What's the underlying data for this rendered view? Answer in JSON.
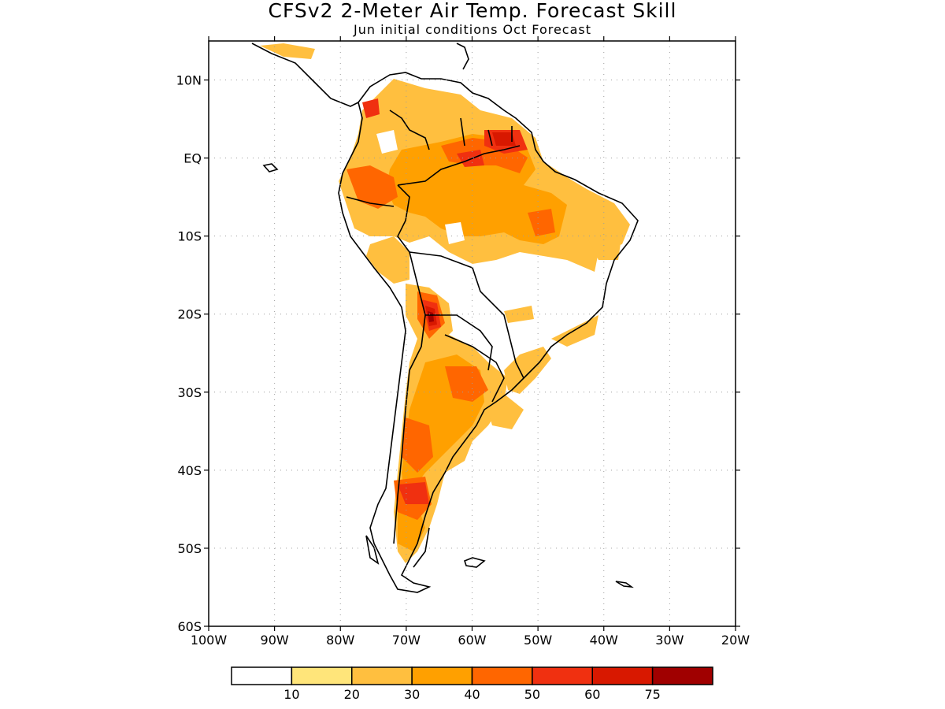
{
  "header": {
    "title": "CFSv2 2-Meter Air Temp. Forecast Skill",
    "subtitle": "Jun initial conditions  Oct Forecast"
  },
  "map": {
    "lon_range": [
      -100,
      -20
    ],
    "lat_range": [
      -60,
      15
    ],
    "lat_ticks": [
      {
        "value": 10,
        "label": "10N"
      },
      {
        "value": 0,
        "label": "EQ"
      },
      {
        "value": -10,
        "label": "10S"
      },
      {
        "value": -20,
        "label": "20S"
      },
      {
        "value": -30,
        "label": "30S"
      },
      {
        "value": -40,
        "label": "40S"
      },
      {
        "value": -50,
        "label": "50S"
      },
      {
        "value": -60,
        "label": "60S"
      }
    ],
    "lon_ticks": [
      {
        "value": -100,
        "label": "100W"
      },
      {
        "value": -90,
        "label": "90W"
      },
      {
        "value": -80,
        "label": "80W"
      },
      {
        "value": -70,
        "label": "70W"
      },
      {
        "value": -60,
        "label": "60W"
      },
      {
        "value": -50,
        "label": "50W"
      },
      {
        "value": -40,
        "label": "40W"
      },
      {
        "value": -30,
        "label": "30W"
      },
      {
        "value": -20,
        "label": "20W"
      }
    ],
    "grid": "dotted"
  },
  "legend": {
    "levels": [
      "10",
      "20",
      "30",
      "40",
      "50",
      "60",
      "75"
    ],
    "colors": [
      "#ffffff",
      "#ffe57a",
      "#ffbf3f",
      "#ffa000",
      "#ff6600",
      "#f03010",
      "#d81800",
      "#a00000"
    ]
  }
}
